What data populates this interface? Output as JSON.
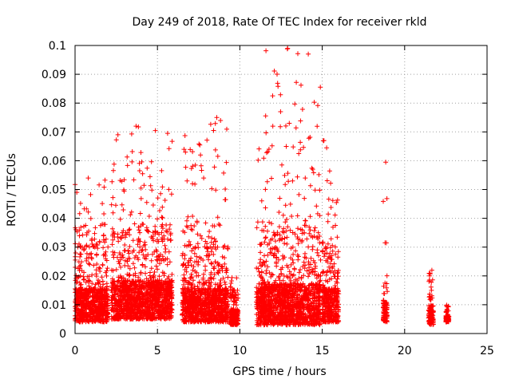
{
  "chart_data": {
    "type": "scatter",
    "title": "Day 249 of 2018, Rate Of TEC Index for receiver rkld",
    "xlabel": "GPS time / hours",
    "ylabel": "ROTI / TECUs",
    "xlim": [
      0,
      25
    ],
    "ylim": [
      0,
      0.1
    ],
    "x_ticks": [
      "0",
      "5",
      "10",
      "15",
      "20",
      "25"
    ],
    "y_ticks": [
      "0",
      "0.01",
      "0.02",
      "0.03",
      "0.04",
      "0.05",
      "0.06",
      "0.07",
      "0.08",
      "0.09",
      "0.1"
    ],
    "grid": true,
    "marker": "+",
    "color": "#ff0000",
    "clusters": [
      {
        "x": [
          0.0,
          2.0
        ],
        "base_y": 0.004,
        "typical_max": 0.03,
        "peak": 0.054
      },
      {
        "x": [
          2.2,
          5.9
        ],
        "base_y": 0.005,
        "typical_max": 0.035,
        "peak": 0.072
      },
      {
        "x": [
          6.5,
          9.3
        ],
        "base_y": 0.004,
        "typical_max": 0.03,
        "peak": 0.075
      },
      {
        "x": [
          9.4,
          9.9
        ],
        "base_y": 0.003,
        "typical_max": 0.015,
        "peak": 0.02
      },
      {
        "x": [
          11.0,
          14.9
        ],
        "base_y": 0.003,
        "typical_max": 0.035,
        "peak": 0.099
      },
      {
        "x": [
          15.0,
          16.0
        ],
        "base_y": 0.004,
        "typical_max": 0.03,
        "peak": 0.067
      },
      {
        "x": [
          18.7,
          18.95
        ],
        "base_y": 0.004,
        "typical_max": 0.019,
        "peak": 0.0595
      },
      {
        "x": [
          21.45,
          21.75
        ],
        "base_y": 0.003,
        "typical_max": 0.018,
        "peak": 0.022
      },
      {
        "x": [
          22.5,
          22.7
        ],
        "base_y": 0.004,
        "typical_max": 0.009,
        "peak": 0.011
      }
    ],
    "highlight_points": [
      {
        "x": 12.9,
        "y": 0.099
      },
      {
        "x": 8.6,
        "y": 0.075
      },
      {
        "x": 3.7,
        "y": 0.072
      },
      {
        "x": 12.0,
        "y": 0.072
      },
      {
        "x": 13.0,
        "y": 0.073
      },
      {
        "x": 2.6,
        "y": 0.069
      },
      {
        "x": 6.7,
        "y": 0.063
      },
      {
        "x": 15.1,
        "y": 0.067
      },
      {
        "x": 18.85,
        "y": 0.0595
      },
      {
        "x": 0.8,
        "y": 0.054
      },
      {
        "x": 21.65,
        "y": 0.022
      }
    ]
  }
}
